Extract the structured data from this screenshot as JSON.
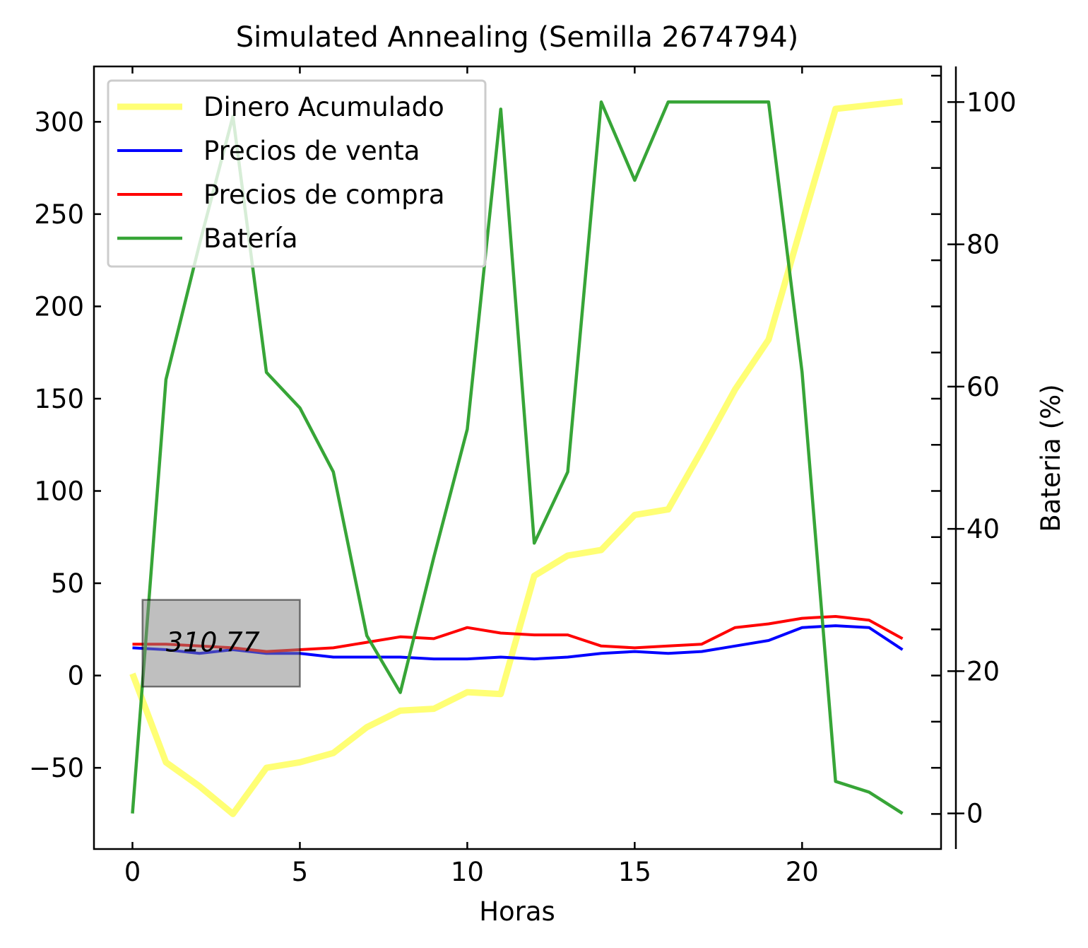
{
  "chart_data": {
    "type": "line",
    "title": "Simulated Annealing (Semilla 2674794)",
    "xlabel": "Horas",
    "ylabel": "",
    "y2label": "Bateria (%)",
    "y2label_color": "#008000",
    "xlim": [
      -1.15,
      24.15
    ],
    "ylim": [
      -94,
      330
    ],
    "y2lim": [
      -5,
      105
    ],
    "x_ticks": [
      0,
      5,
      10,
      15,
      20
    ],
    "y_ticks": [
      -50,
      0,
      50,
      100,
      150,
      200,
      250,
      300
    ],
    "y_tick_labels": [
      "−50",
      "0",
      "50",
      "100",
      "150",
      "200",
      "250",
      "300"
    ],
    "y2_ticks": [
      0,
      20,
      40,
      60,
      80,
      100
    ],
    "grid": false,
    "legend_position": "top-left",
    "x": [
      0,
      1,
      2,
      3,
      4,
      5,
      6,
      7,
      8,
      9,
      10,
      11,
      12,
      13,
      14,
      15,
      16,
      17,
      18,
      19,
      20,
      21,
      22,
      23
    ],
    "series": [
      {
        "name": "Dinero Acumulado",
        "axis": "left",
        "color": "#ffff66",
        "values": [
          1,
          -47,
          -60,
          -75,
          -50,
          -47,
          -42,
          -28,
          -19,
          -18,
          -9,
          -10,
          54,
          65,
          68,
          87,
          90,
          122,
          155,
          182,
          245,
          307,
          309,
          311
        ]
      },
      {
        "name": "Precios de venta",
        "axis": "left",
        "color": "#0000ff",
        "values": [
          15,
          14,
          12,
          14,
          12,
          12,
          10,
          10,
          10,
          9,
          9,
          10,
          9,
          10,
          12,
          13,
          12,
          13,
          16,
          19,
          26,
          27,
          26,
          14
        ]
      },
      {
        "name": "Precios de compra",
        "axis": "left",
        "color": "#ff0000",
        "values": [
          17,
          17,
          16,
          15,
          13,
          14,
          15,
          18,
          21,
          20,
          26,
          23,
          22,
          22,
          16,
          15,
          16,
          17,
          26,
          28,
          31,
          32,
          30,
          20
        ]
      },
      {
        "name": "Batería",
        "axis": "right",
        "color": "#2ca02c",
        "values": [
          0,
          61,
          80,
          98,
          62,
          57,
          48,
          25,
          17,
          36,
          54,
          99,
          38,
          48,
          100,
          89,
          100,
          100,
          100,
          100,
          62,
          4.5,
          3,
          0
        ]
      }
    ],
    "annotation": {
      "text": "310.77",
      "box_x": [
        0.3,
        5.0
      ],
      "box_y": [
        -6,
        41
      ],
      "text_x": 1.0,
      "text_y": 15
    }
  }
}
